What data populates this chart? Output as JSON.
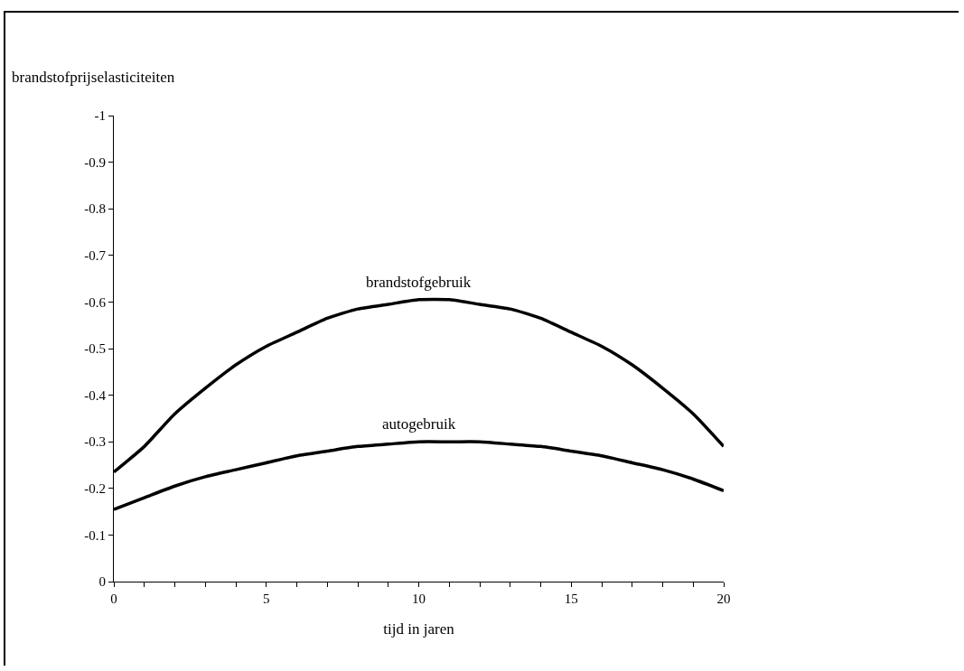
{
  "chart_data": {
    "type": "line",
    "xlabel": "tijd in jaren",
    "ylabel": "brandstofprijselasticiteiten",
    "x": [
      0,
      1,
      2,
      3,
      4,
      5,
      6,
      7,
      8,
      9,
      10,
      11,
      12,
      13,
      14,
      15,
      16,
      17,
      18,
      19,
      20
    ],
    "series": [
      {
        "name": "brandstofgebruik",
        "color": "#000000",
        "values": [
          -0.235,
          -0.29,
          -0.36,
          -0.415,
          -0.465,
          -0.505,
          -0.535,
          -0.565,
          -0.585,
          -0.595,
          -0.605,
          -0.605,
          -0.595,
          -0.585,
          -0.565,
          -0.535,
          -0.505,
          -0.465,
          -0.415,
          -0.36,
          -0.29
        ]
      },
      {
        "name": "autogebruik",
        "color": "#000000",
        "values": [
          -0.155,
          -0.18,
          -0.205,
          -0.225,
          -0.24,
          -0.255,
          -0.27,
          -0.28,
          -0.29,
          -0.295,
          -0.3,
          -0.3,
          -0.3,
          -0.295,
          -0.29,
          -0.28,
          -0.27,
          -0.255,
          -0.24,
          -0.22,
          -0.195
        ]
      }
    ],
    "xlim": [
      0,
      20
    ],
    "xticks": [
      0,
      {
        "value": 1,
        "label": null
      },
      {
        "value": 2,
        "label": null
      },
      {
        "value": 3,
        "label": null
      },
      {
        "value": 4,
        "label": null
      },
      5,
      {
        "value": 6,
        "label": null
      },
      {
        "value": 7,
        "label": null
      },
      {
        "value": 8,
        "label": null
      },
      {
        "value": 9,
        "label": null
      },
      10,
      {
        "value": 11,
        "label": null
      },
      {
        "value": 12,
        "label": null
      },
      {
        "value": 13,
        "label": null
      },
      {
        "value": 14,
        "label": null
      },
      15,
      {
        "value": 16,
        "label": null
      },
      {
        "value": 17,
        "label": null
      },
      {
        "value": 18,
        "label": null
      },
      {
        "value": 19,
        "label": null
      },
      20
    ],
    "ylim": [
      0,
      -1
    ],
    "yticks": [
      0,
      -0.1,
      -0.2,
      -0.3,
      -0.4,
      -0.5,
      -0.6,
      -0.7,
      -0.8,
      -0.9,
      -1
    ],
    "grid": false,
    "legend": false,
    "marker": "none",
    "line_style": "solid"
  }
}
